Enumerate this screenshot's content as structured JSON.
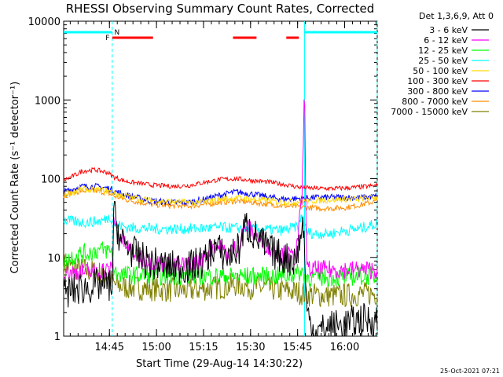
{
  "chart_data": {
    "type": "line",
    "title": "RHESSI Observing Summary Count Rates, Corrected",
    "xlabel": "Start Time (29-Aug-14 14:30:22)",
    "ylabel": "Corrected Count Rate (s⁻¹ detector⁻¹)",
    "y_scale": "log",
    "ylim": [
      1,
      10000
    ],
    "x_unit": "minutes after 14:30:22",
    "xlim": [
      0,
      100
    ],
    "x_ticks": [
      {
        "label": "14:45",
        "value": 14.6
      },
      {
        "label": "15:00",
        "value": 29.6
      },
      {
        "label": "15:15",
        "value": 44.6
      },
      {
        "label": "15:30",
        "value": 59.6
      },
      {
        "label": "15:45",
        "value": 74.6
      },
      {
        "label": "16:00",
        "value": 89.6
      }
    ],
    "y_ticks": [
      {
        "label": "1",
        "value": 1
      },
      {
        "label": "10",
        "value": 10
      },
      {
        "label": "100",
        "value": 100
      },
      {
        "label": "1000",
        "value": 1000
      },
      {
        "label": "10000",
        "value": 10000
      }
    ],
    "legend": {
      "header": "Det 1,3,6,9, Att 0",
      "placement": "right, outside plot"
    },
    "series": [
      {
        "name": "3 - 6 keV",
        "color": "#000000",
        "x": [
          0,
          2,
          5,
          8,
          12,
          15.5,
          16,
          18,
          20,
          23,
          26,
          30,
          35,
          40,
          45,
          48,
          52,
          56,
          58,
          62,
          66,
          70,
          74,
          76.5,
          77.5,
          80,
          85,
          90,
          94,
          100
        ],
        "y": [
          3.5,
          3.7,
          4,
          4.2,
          4.5,
          4.4,
          38,
          17,
          14,
          11,
          9,
          8,
          7.5,
          7.5,
          9,
          14,
          10,
          13,
          26,
          17,
          12,
          10,
          9,
          28,
          2,
          1.1,
          1.3,
          1.4,
          1.6,
          1.6
        ]
      },
      {
        "name": "6 - 12 keV",
        "color": "#ff00ff",
        "x": [
          0,
          2,
          5,
          8,
          12,
          15.5,
          16,
          18,
          20,
          23,
          26,
          30,
          35,
          40,
          45,
          48,
          52,
          56,
          58,
          62,
          66,
          70,
          74,
          76,
          76.8,
          77.5,
          78,
          80,
          85,
          90,
          94,
          100
        ],
        "y": [
          7,
          6.5,
          6.5,
          6.5,
          6.8,
          7,
          32,
          18,
          14,
          11,
          9.5,
          8.5,
          8,
          8,
          10,
          15,
          11,
          14,
          25,
          18,
          13,
          11,
          10,
          55,
          1500,
          7,
          7,
          7,
          7,
          7,
          7,
          7
        ]
      },
      {
        "name": "12 - 25 keV",
        "color": "#00ff00",
        "x": [
          0,
          2,
          5,
          8,
          12,
          15.5,
          16,
          20,
          30,
          40,
          50,
          60,
          70,
          76,
          77.5,
          80,
          85,
          90,
          94,
          100
        ],
        "y": [
          9,
          10,
          11,
          11.5,
          12.5,
          12,
          6.5,
          6,
          5.8,
          5.8,
          5.8,
          5.8,
          5.8,
          6.5,
          5.6,
          5.6,
          5.6,
          5.6,
          5.8,
          5.8
        ]
      },
      {
        "name": "25 - 50 keV",
        "color": "#00ffff",
        "x": [
          0,
          2,
          5,
          8,
          12,
          15,
          16,
          20,
          30,
          40,
          50,
          60,
          70,
          75,
          76,
          77.5,
          80,
          85,
          90,
          94,
          100
        ],
        "y": [
          30,
          29,
          28,
          28,
          29,
          33,
          27,
          24,
          23,
          23,
          24,
          23,
          22,
          25,
          35,
          21,
          20,
          20,
          22,
          23,
          27
        ]
      },
      {
        "name": "50 - 100 keV",
        "color": "#ffd700",
        "x": [
          0,
          3,
          6,
          10,
          14,
          16,
          20,
          28,
          35,
          40,
          45,
          50,
          55,
          60,
          66,
          70,
          75,
          78,
          82,
          86,
          90,
          94,
          100
        ],
        "y": [
          62,
          68,
          73,
          72,
          70,
          65,
          60,
          53,
          51,
          50,
          51,
          55,
          57,
          55,
          52,
          50,
          51,
          52,
          53,
          54,
          55,
          55,
          58
        ]
      },
      {
        "name": "100 - 300 keV",
        "color": "#ff0000",
        "x": [
          0,
          3,
          6,
          10,
          14,
          16,
          20,
          28,
          35,
          40,
          45,
          50,
          55,
          60,
          66,
          70,
          75,
          78,
          82,
          86,
          90,
          94,
          100
        ],
        "y": [
          95,
          108,
          125,
          130,
          120,
          105,
          92,
          83,
          80,
          82,
          90,
          98,
          100,
          95,
          90,
          85,
          78,
          76,
          75,
          75,
          76,
          78,
          82
        ]
      },
      {
        "name": "300 - 800 keV",
        "color": "#0000ff",
        "x": [
          0,
          3,
          6,
          10,
          14,
          16,
          20,
          28,
          35,
          40,
          45,
          50,
          55,
          60,
          66,
          70,
          75,
          78,
          82,
          86,
          90,
          94,
          100
        ],
        "y": [
          68,
          74,
          80,
          80,
          76,
          70,
          62,
          52,
          50,
          50,
          55,
          62,
          68,
          64,
          58,
          55,
          56,
          57,
          58,
          58,
          58,
          57,
          60
        ]
      },
      {
        "name": "800 - 7000 keV",
        "color": "#ff8c00",
        "x": [
          0,
          3,
          6,
          10,
          14,
          16,
          20,
          28,
          35,
          40,
          45,
          50,
          55,
          60,
          66,
          70,
          75,
          78,
          82,
          86,
          90,
          94,
          100
        ],
        "y": [
          60,
          66,
          70,
          70,
          66,
          60,
          54,
          47,
          45,
          45,
          47,
          50,
          52,
          50,
          47,
          45,
          44,
          43,
          42,
          42,
          43,
          46,
          52
        ]
      },
      {
        "name": "7000 - 15000 keV",
        "color": "#808000",
        "x": [
          0,
          3,
          6,
          10,
          14,
          16,
          20,
          28,
          35,
          40,
          45,
          50,
          55,
          60,
          66,
          70,
          75,
          78,
          82,
          86,
          90,
          94,
          100
        ],
        "y": [
          8,
          7.5,
          7,
          6.5,
          6,
          4.5,
          4.2,
          4,
          3.8,
          3.8,
          4,
          4.2,
          4.5,
          4.2,
          4,
          3.8,
          3.6,
          3.4,
          3.3,
          3.3,
          3.3,
          3.4,
          3.5
        ]
      }
    ],
    "annotations": {
      "mode_bars": [
        {
          "label": "N",
          "color": "#00ffff",
          "ranges": [
            [
              0,
              15.5
            ],
            [
              76.8,
              100
            ]
          ]
        },
        {
          "label": "F",
          "color": "#ff0000",
          "ranges": [
            [
              15.5,
              28.5
            ],
            [
              54,
              61.5
            ],
            [
              71,
              75
            ]
          ]
        }
      ],
      "vertical_lines": [
        {
          "color": "#00ffff",
          "style": "dashed",
          "x": 15.5
        },
        {
          "color": "#00ffff",
          "style": "solid",
          "x": 76.8
        },
        {
          "color": "#00ffff",
          "style": "dashed",
          "x": 100
        }
      ]
    },
    "footer_date": "25-Oct-2021 07:21",
    "grid": false
  }
}
